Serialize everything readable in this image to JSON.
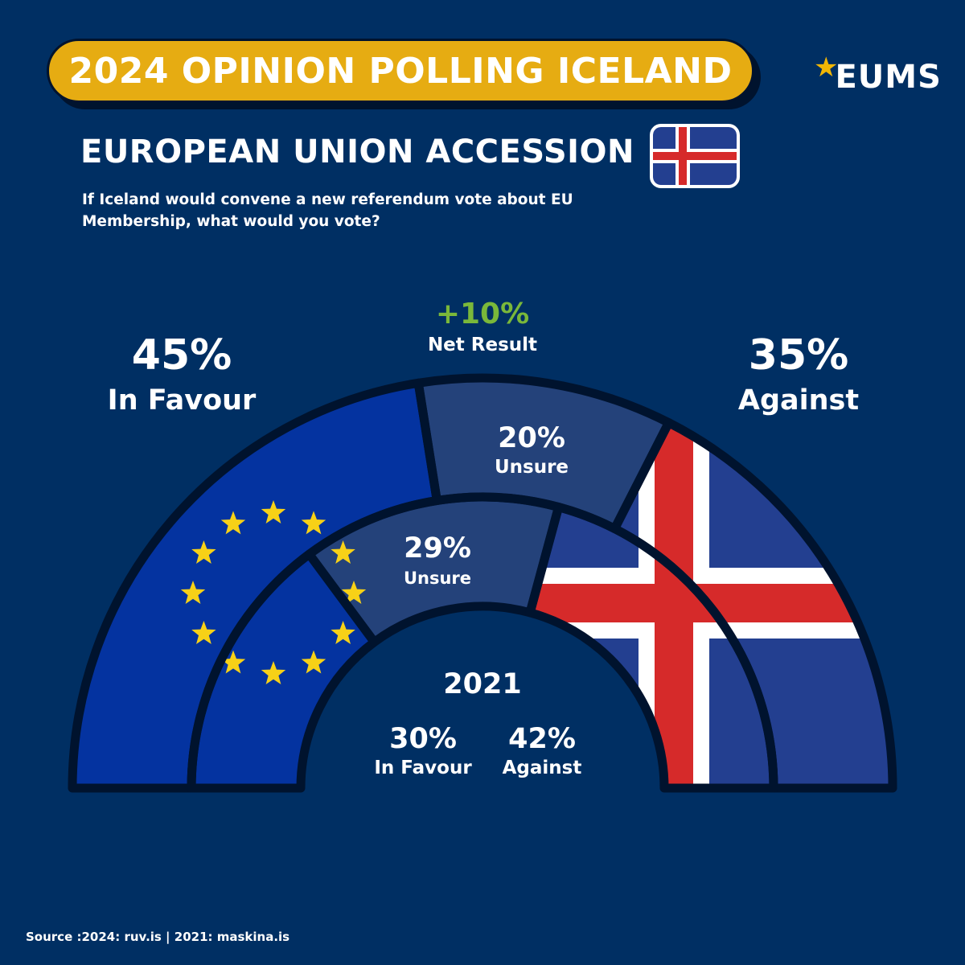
{
  "header": {
    "banner_title": "2024 OPINION POLLING ICELAND",
    "logo_text": "EUMS"
  },
  "section_title": "EUROPEAN UNION ACCESSION",
  "question": "If Iceland would convene a new referendum vote about EU Membership, what would you vote?",
  "net_result": {
    "value": "+10%",
    "label": "Net Result"
  },
  "source": "Source :2024: ruv.is | 2021: maskina.is",
  "colors": {
    "background": "#002f63",
    "banner": "#e6ac12",
    "eu_blue": "#0433a0",
    "unsure": "#24427a",
    "iceland_blue": "#233f90",
    "iceland_red": "#d62a2a",
    "star": "#f7d117",
    "net_green": "#7ab83a",
    "outline": "#00132e"
  },
  "icons": {
    "logo_star": "star-icon",
    "flag": "iceland-flag-icon"
  },
  "chart_data": [
    {
      "type": "pie",
      "title": "",
      "ring": "outer",
      "categories": [
        "In Favour",
        "Unsure",
        "Against"
      ],
      "values": [
        45,
        20,
        35
      ],
      "value_labels": [
        "45%",
        "20%",
        "35%"
      ]
    },
    {
      "type": "pie",
      "title": "2021",
      "ring": "inner",
      "categories": [
        "In Favour",
        "Unsure",
        "Against"
      ],
      "values": [
        30,
        29,
        42
      ],
      "value_labels": [
        "30%",
        "29%",
        "42%"
      ]
    }
  ]
}
